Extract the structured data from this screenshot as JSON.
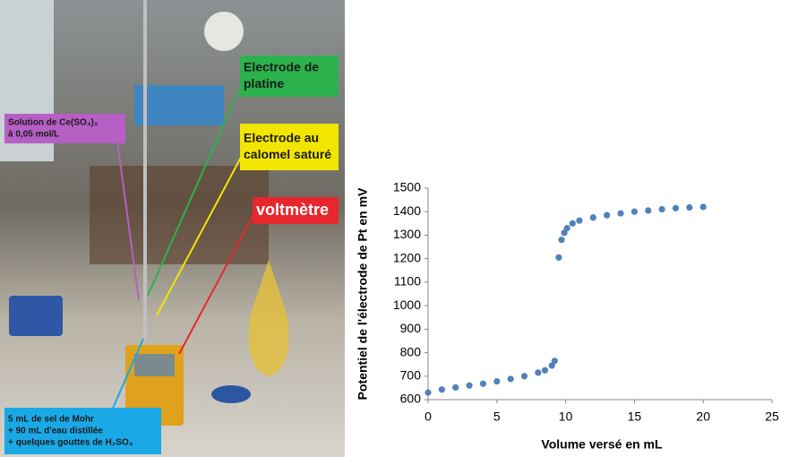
{
  "photo_labels": {
    "platinum": {
      "lines": [
        "Electrode de",
        "platine"
      ],
      "color": "#2bb24c"
    },
    "solution": {
      "lines": [
        "Solution de Ce(SO₄)₂",
        "à 0,05 mol/L"
      ],
      "color": "#b65fc4"
    },
    "calomel": {
      "lines": [
        "Electrode au",
        "calomel saturé"
      ],
      "color": "#f2e600"
    },
    "voltmeter": {
      "lines": [
        "voltmètre"
      ],
      "color": "#e8262d"
    },
    "mohr": {
      "lines": [
        "5 mL de sel de Mohr",
        "+ 90 mL d'eau distillée",
        "+ quelques gouttes de H₂SO₄"
      ],
      "color": "#1aa9e6"
    }
  },
  "chart_data": {
    "type": "scatter",
    "x_label": "Volume versé en mL",
    "y_label": "Potentiel de l'électrode de Pt en mV",
    "series": [
      {
        "color": "#4f81bd",
        "x": [
          0,
          1,
          2,
          3,
          4,
          5,
          6,
          7,
          8,
          8.5,
          9,
          9.2,
          9.5,
          9.7,
          9.9,
          10.1,
          10.5,
          11,
          12,
          13,
          14,
          15,
          16,
          17,
          18,
          19,
          20
        ],
        "values": [
          630,
          643,
          652,
          660,
          668,
          678,
          688,
          700,
          715,
          725,
          745,
          765,
          1205,
          1280,
          1310,
          1330,
          1350,
          1362,
          1375,
          1385,
          1393,
          1400,
          1405,
          1410,
          1415,
          1418,
          1420
        ]
      }
    ],
    "xlim": [
      0,
      25
    ],
    "xticks": [
      0,
      5,
      10,
      15,
      20,
      25
    ],
    "ylim": [
      600,
      1500
    ],
    "yticks": [
      600,
      700,
      800,
      900,
      1000,
      1100,
      1200,
      1300,
      1400,
      1500
    ]
  }
}
